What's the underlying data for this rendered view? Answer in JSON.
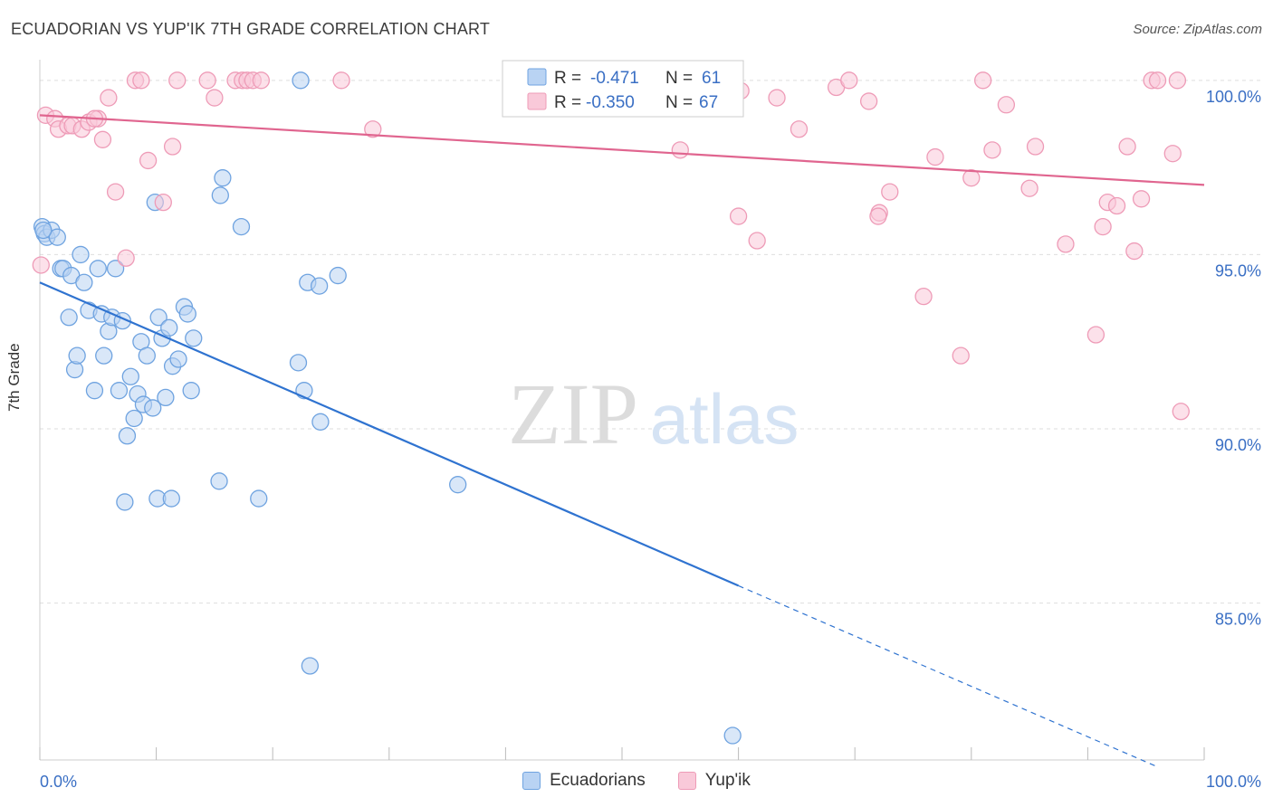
{
  "title": "ECUADORIAN VS YUP'IK 7TH GRADE CORRELATION CHART",
  "source": "Source: ZipAtlas.com",
  "watermark": {
    "zip": "ZIP",
    "atlas": "atlas"
  },
  "chart_data": {
    "type": "scatter",
    "title": "ECUADORIAN VS YUP'IK 7TH GRADE CORRELATION CHART",
    "xlabel": "",
    "ylabel": "7th Grade",
    "xlim": [
      0,
      100
    ],
    "ylim": [
      80.5,
      100.8
    ],
    "x_tick_labels": [
      "0.0%",
      "100.0%"
    ],
    "y_ticks": [
      85,
      90,
      95,
      100
    ],
    "y_tick_labels": [
      "85.0%",
      "90.0%",
      "95.0%",
      "100.0%"
    ],
    "grid": true,
    "legend_position": "top-center",
    "series": [
      {
        "name": "Ecuadorians",
        "color": "#6fa3e0",
        "fill": "#b9d3f3",
        "line_color": "#2f73d0",
        "R": "-0.471",
        "N": "61",
        "trend": {
          "x": [
            0,
            60
          ],
          "y": [
            94.2,
            85.5
          ]
        },
        "trend_dashed": {
          "x": [
            60,
            96
          ],
          "y": [
            85.5,
            80.3
          ]
        },
        "points": [
          [
            0.2,
            95.8
          ],
          [
            0.4,
            95.6
          ],
          [
            0.6,
            95.5
          ],
          [
            1.0,
            95.7
          ],
          [
            1.5,
            95.5
          ],
          [
            1.8,
            94.6
          ],
          [
            2.0,
            94.6
          ],
          [
            2.5,
            93.2
          ],
          [
            2.7,
            94.4
          ],
          [
            3.0,
            91.7
          ],
          [
            3.2,
            92.1
          ],
          [
            3.5,
            95.0
          ],
          [
            3.8,
            94.2
          ],
          [
            4.2,
            93.4
          ],
          [
            4.7,
            91.1
          ],
          [
            5.0,
            94.6
          ],
          [
            5.3,
            93.3
          ],
          [
            5.5,
            92.1
          ],
          [
            5.9,
            92.8
          ],
          [
            6.2,
            93.2
          ],
          [
            6.5,
            94.6
          ],
          [
            6.8,
            91.1
          ],
          [
            7.1,
            93.1
          ],
          [
            7.3,
            87.9
          ],
          [
            7.5,
            89.8
          ],
          [
            7.8,
            91.5
          ],
          [
            8.1,
            90.3
          ],
          [
            8.4,
            91.0
          ],
          [
            8.7,
            92.5
          ],
          [
            8.9,
            90.7
          ],
          [
            9.2,
            92.1
          ],
          [
            9.7,
            90.6
          ],
          [
            9.9,
            96.5
          ],
          [
            10.2,
            93.2
          ],
          [
            10.5,
            92.6
          ],
          [
            10.8,
            90.9
          ],
          [
            11.1,
            92.9
          ],
          [
            11.4,
            91.8
          ],
          [
            11.9,
            92.0
          ],
          [
            12.4,
            93.5
          ],
          [
            12.7,
            93.3
          ],
          [
            13.0,
            91.1
          ],
          [
            13.2,
            92.6
          ],
          [
            10.1,
            88.0
          ],
          [
            11.3,
            88.0
          ],
          [
            15.5,
            96.7
          ],
          [
            15.7,
            97.2
          ],
          [
            17.3,
            95.8
          ],
          [
            15.4,
            88.5
          ],
          [
            18.8,
            88.0
          ],
          [
            22.2,
            91.9
          ],
          [
            22.7,
            91.1
          ],
          [
            22.4,
            100.0
          ],
          [
            23.0,
            94.2
          ],
          [
            24.0,
            94.1
          ],
          [
            24.1,
            90.2
          ],
          [
            25.6,
            94.4
          ],
          [
            23.2,
            83.2
          ],
          [
            35.9,
            88.4
          ],
          [
            59.5,
            81.2
          ],
          [
            0.3,
            95.7
          ]
        ]
      },
      {
        "name": "Yup'ik",
        "color": "#ee9bb7",
        "fill": "#f9c9d9",
        "line_color": "#e0658f",
        "R": "-0.350",
        "N": "67",
        "trend": {
          "x": [
            0,
            100
          ],
          "y": [
            99.0,
            97.0
          ]
        },
        "points": [
          [
            0.1,
            94.7
          ],
          [
            0.5,
            99.0
          ],
          [
            1.3,
            98.9
          ],
          [
            1.6,
            98.6
          ],
          [
            2.4,
            98.7
          ],
          [
            2.8,
            98.7
          ],
          [
            3.6,
            98.6
          ],
          [
            4.2,
            98.8
          ],
          [
            5.0,
            98.9
          ],
          [
            5.4,
            98.3
          ],
          [
            5.9,
            99.5
          ],
          [
            6.5,
            96.8
          ],
          [
            7.4,
            94.9
          ],
          [
            8.2,
            100.0
          ],
          [
            8.7,
            100.0
          ],
          [
            9.3,
            97.7
          ],
          [
            10.6,
            96.5
          ],
          [
            11.4,
            98.1
          ],
          [
            11.8,
            100.0
          ],
          [
            14.4,
            100.0
          ],
          [
            15.0,
            99.5
          ],
          [
            16.8,
            100.0
          ],
          [
            17.4,
            100.0
          ],
          [
            17.8,
            100.0
          ],
          [
            18.3,
            100.0
          ],
          [
            19.0,
            100.0
          ],
          [
            25.9,
            100.0
          ],
          [
            28.6,
            98.6
          ],
          [
            41.8,
            100.0
          ],
          [
            48.2,
            100.0
          ],
          [
            55.0,
            98.0
          ],
          [
            59.5,
            100.0
          ],
          [
            60.2,
            99.7
          ],
          [
            60.0,
            96.1
          ],
          [
            61.6,
            95.4
          ],
          [
            63.3,
            99.5
          ],
          [
            65.2,
            98.6
          ],
          [
            68.4,
            99.8
          ],
          [
            69.5,
            100.0
          ],
          [
            71.2,
            99.4
          ],
          [
            72.1,
            96.2
          ],
          [
            73.0,
            96.8
          ],
          [
            75.9,
            93.8
          ],
          [
            76.9,
            97.8
          ],
          [
            79.1,
            92.1
          ],
          [
            80.0,
            97.2
          ],
          [
            81.0,
            100.0
          ],
          [
            81.8,
            98.0
          ],
          [
            83.0,
            99.3
          ],
          [
            85.0,
            96.9
          ],
          [
            85.5,
            98.1
          ],
          [
            88.1,
            95.3
          ],
          [
            90.7,
            92.7
          ],
          [
            91.3,
            95.8
          ],
          [
            91.7,
            96.5
          ],
          [
            92.5,
            96.4
          ],
          [
            93.4,
            98.1
          ],
          [
            94.0,
            95.1
          ],
          [
            94.6,
            96.6
          ],
          [
            95.5,
            100.0
          ],
          [
            96.0,
            100.0
          ],
          [
            97.3,
            97.9
          ],
          [
            97.7,
            100.0
          ],
          [
            98.0,
            90.5
          ],
          [
            72.0,
            96.1
          ],
          [
            55.5,
            100.0
          ],
          [
            4.7,
            98.9
          ]
        ]
      }
    ]
  }
}
